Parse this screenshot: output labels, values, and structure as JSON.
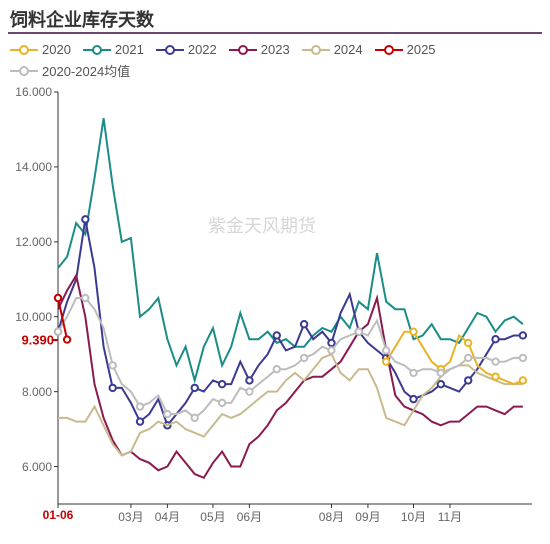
{
  "title": "饲料企业库存天数",
  "watermark": "紫金天风期货",
  "legend": [
    {
      "label": "2020",
      "color": "#e8b426"
    },
    {
      "label": "2021",
      "color": "#1b8d87"
    },
    {
      "label": "2022",
      "color": "#3b3a91"
    },
    {
      "label": "2023",
      "color": "#8a1a4f"
    },
    {
      "label": "2024",
      "color": "#c9b98f"
    },
    {
      "label": "2025",
      "color": "#c40000"
    },
    {
      "label": "2020-2024均值",
      "color": "#bdbdbd"
    }
  ],
  "chart": {
    "ylim": [
      5.0,
      16.0
    ],
    "yticks": [
      6.0,
      8.0,
      10.0,
      12.0,
      14.0,
      16.0
    ],
    "ytick_format": "0.000",
    "xlim": [
      0,
      52
    ],
    "xtick_positions": [
      0,
      8,
      12,
      17,
      21,
      30,
      34,
      39,
      43
    ],
    "xtick_labels": [
      "01-06",
      "03月",
      "04月",
      "05月",
      "06月",
      "08月",
      "09月",
      "10月",
      "11月"
    ],
    "xtick_current_index": 0,
    "last_value": 9.39,
    "background_color": "#ffffff",
    "axis_color": "#333333",
    "title_fontsize": 18,
    "tick_fontsize": 12,
    "legend_fontsize": 13,
    "marker_radius": 3.2
  },
  "series": [
    {
      "name": "2021",
      "color": "#1b8d87",
      "markers": false,
      "values": [
        11.3,
        11.6,
        12.5,
        12.2,
        13.7,
        15.3,
        13.5,
        12.0,
        12.1,
        10.0,
        10.2,
        10.5,
        9.4,
        8.7,
        9.2,
        8.3,
        9.2,
        9.7,
        8.7,
        9.2,
        10.1,
        9.4,
        9.4,
        9.6,
        9.3,
        9.4,
        9.2,
        9.2,
        9.5,
        9.7,
        9.6,
        10.0,
        9.7,
        10.4,
        10.2,
        11.7,
        10.4,
        10.2,
        10.2,
        9.4,
        9.5,
        9.8,
        9.4,
        9.4,
        9.3,
        9.7,
        10.1,
        10.0,
        9.6,
        9.9,
        10.0,
        9.8
      ]
    },
    {
      "name": "2022",
      "color": "#3b3a91",
      "markers": true,
      "values": [
        9.6,
        10.4,
        11.0,
        12.6,
        11.3,
        9.2,
        8.1,
        8.1,
        7.7,
        7.2,
        7.4,
        7.8,
        7.1,
        7.4,
        7.7,
        8.1,
        8.0,
        8.3,
        8.2,
        8.2,
        8.8,
        8.3,
        8.7,
        9.0,
        9.5,
        9.1,
        9.2,
        9.8,
        9.4,
        9.6,
        9.3,
        10.1,
        10.6,
        9.6,
        9.3,
        9.1,
        8.9,
        8.5,
        8.0,
        7.8,
        7.9,
        8.0,
        8.2,
        8.1,
        8.0,
        8.3,
        8.6,
        9.0,
        9.4,
        9.4,
        9.5,
        9.5
      ]
    },
    {
      "name": "2023",
      "color": "#8a1a4f",
      "markers": false,
      "values": [
        10.2,
        10.7,
        11.1,
        10.0,
        8.2,
        7.3,
        6.7,
        6.3,
        6.4,
        6.2,
        6.1,
        5.9,
        6.0,
        6.4,
        6.1,
        5.8,
        5.7,
        6.1,
        6.4,
        6.0,
        6.0,
        6.6,
        6.8,
        7.1,
        7.5,
        7.7,
        8.0,
        8.3,
        8.4,
        8.4,
        8.6,
        8.8,
        9.2,
        9.6,
        9.8,
        10.5,
        9.1,
        7.9,
        7.6,
        7.5,
        7.4,
        7.2,
        7.1,
        7.2,
        7.2,
        7.4,
        7.6,
        7.6,
        7.5,
        7.4,
        7.6,
        7.6
      ]
    },
    {
      "name": "2024",
      "color": "#c9b98f",
      "markers": false,
      "values": [
        7.3,
        7.3,
        7.2,
        7.2,
        7.6,
        7.1,
        6.6,
        6.3,
        6.4,
        6.9,
        7.0,
        7.2,
        7.1,
        7.2,
        7.0,
        6.9,
        6.8,
        7.1,
        7.4,
        7.3,
        7.4,
        7.6,
        7.8,
        8.0,
        8.0,
        8.3,
        8.5,
        8.3,
        8.6,
        8.9,
        9.0,
        8.5,
        8.3,
        8.6,
        8.6,
        8.1,
        7.3,
        7.2,
        7.1,
        7.5,
        7.9,
        8.1,
        8.4,
        8.6,
        8.7,
        8.7,
        8.5,
        8.4,
        8.3,
        8.2,
        8.2,
        8.2
      ]
    },
    {
      "name": "2020",
      "color": "#e8b426",
      "markers": true,
      "values": [
        null,
        null,
        null,
        null,
        null,
        null,
        null,
        null,
        null,
        null,
        null,
        null,
        null,
        null,
        null,
        null,
        null,
        null,
        null,
        null,
        null,
        null,
        null,
        null,
        null,
        null,
        null,
        null,
        null,
        null,
        null,
        null,
        null,
        null,
        null,
        null,
        8.8,
        9.2,
        9.6,
        9.6,
        9.2,
        8.8,
        8.6,
        8.8,
        9.5,
        9.3,
        8.7,
        8.5,
        8.4,
        8.3,
        8.2,
        8.3
      ]
    },
    {
      "name": "2020-2024均值",
      "color": "#bdbdbd",
      "markers": true,
      "values": [
        9.6,
        10.0,
        10.5,
        10.5,
        10.2,
        9.7,
        8.7,
        8.2,
        8.0,
        7.6,
        7.7,
        7.9,
        7.4,
        7.4,
        7.5,
        7.3,
        7.5,
        7.8,
        7.7,
        7.7,
        8.1,
        8.0,
        8.2,
        8.4,
        8.6,
        8.6,
        8.7,
        8.9,
        9.0,
        9.2,
        9.1,
        9.4,
        9.5,
        9.6,
        9.5,
        9.9,
        9.1,
        8.8,
        8.7,
        8.5,
        8.6,
        8.6,
        8.5,
        8.6,
        8.7,
        8.9,
        8.9,
        8.9,
        8.8,
        8.8,
        8.9,
        8.9
      ]
    },
    {
      "name": "2025",
      "color": "#c40000",
      "markers": true,
      "values": [
        10.5,
        9.39
      ]
    }
  ]
}
